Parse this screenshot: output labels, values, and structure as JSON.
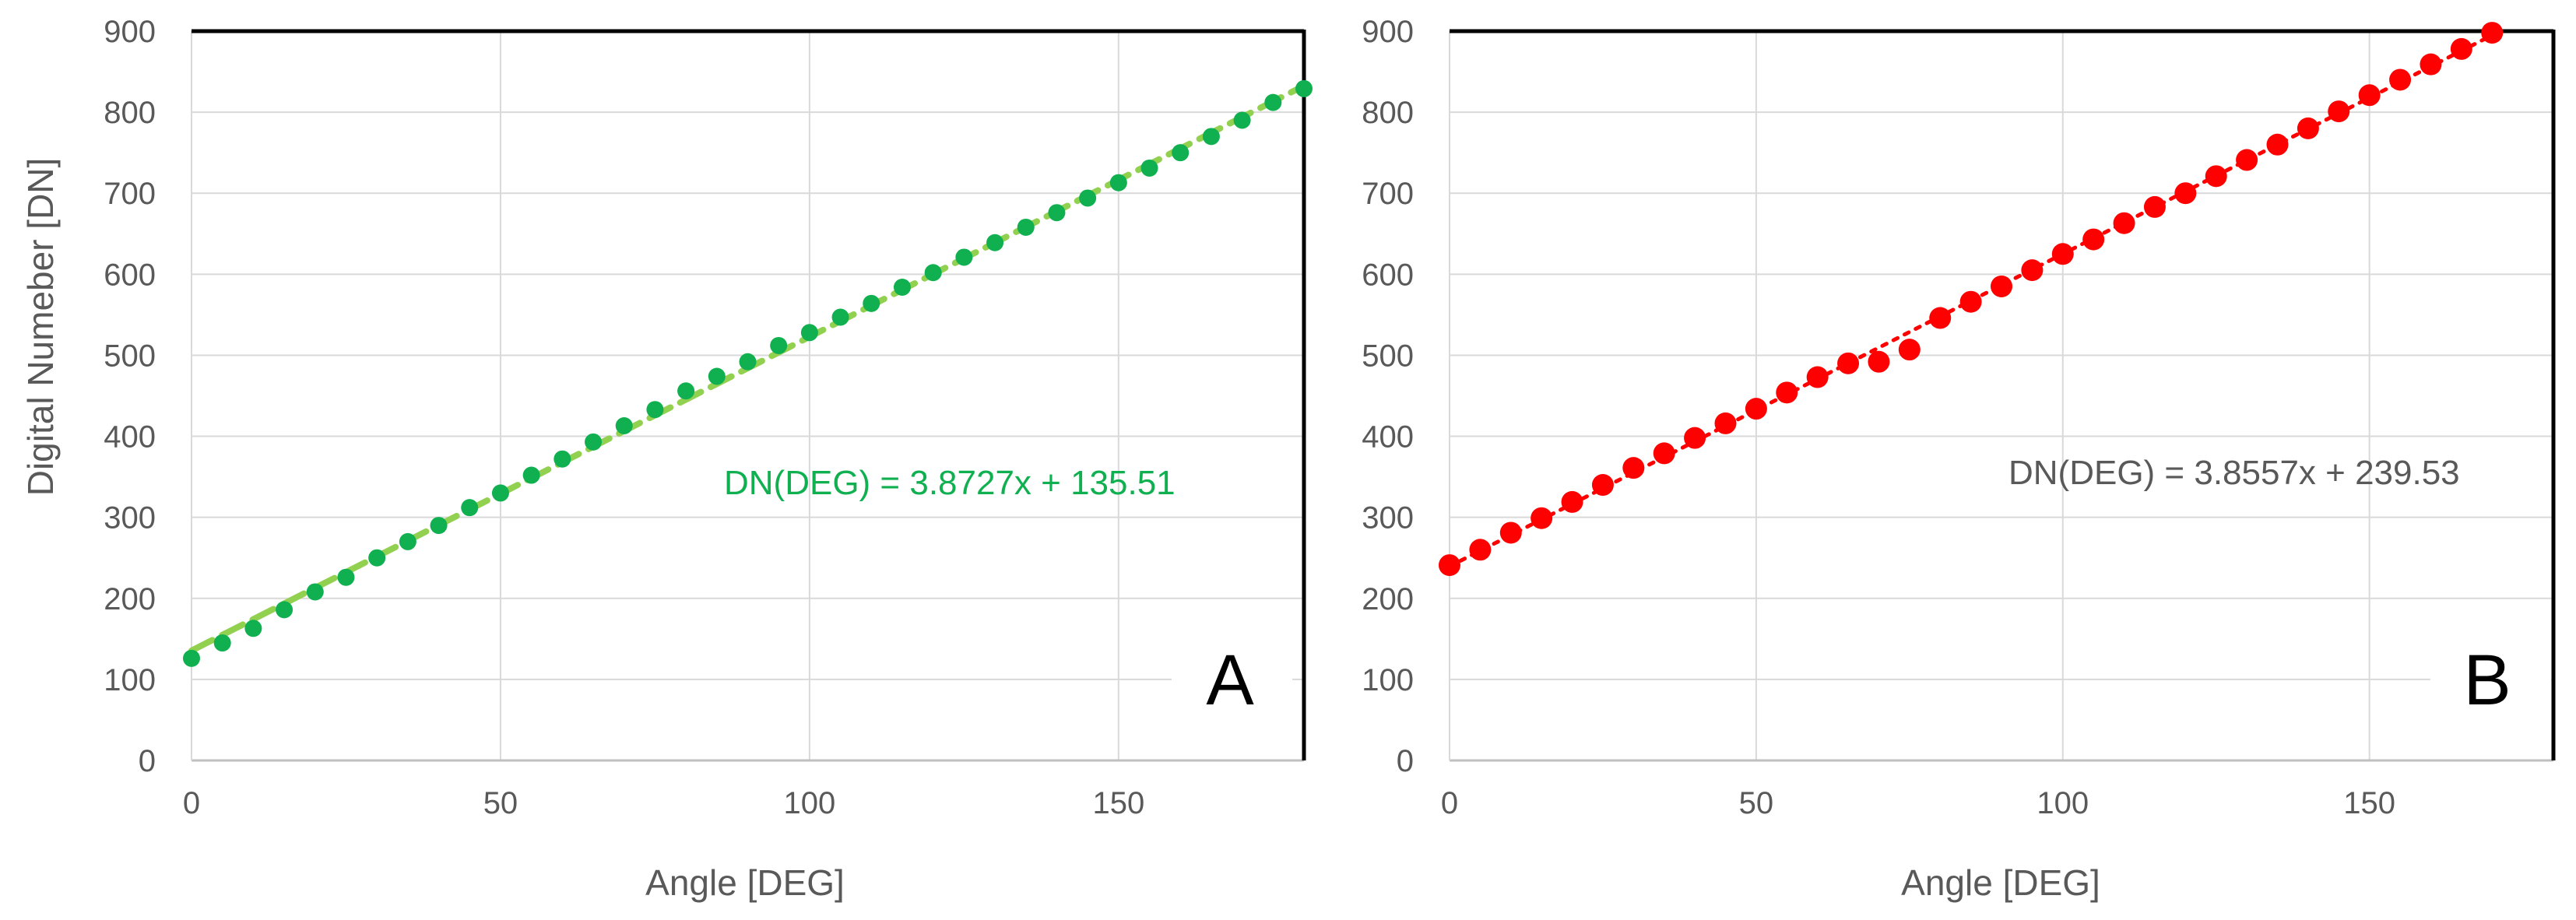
{
  "chart_data": [
    {
      "type": "scatter",
      "panel_label": "A",
      "xlabel": "Angle [DEG]",
      "ylabel": "Digital Numeber [DN]",
      "xlim": [
        0,
        180
      ],
      "ylim": [
        0,
        900
      ],
      "x_ticks": [
        0,
        50,
        100,
        150
      ],
      "y_ticks": [
        0,
        100,
        200,
        300,
        400,
        500,
        600,
        700,
        800,
        900
      ],
      "grid": true,
      "series": [
        {
          "color": "#10b050",
          "marker": "circle",
          "x": [
            0,
            5,
            10,
            15,
            20,
            25,
            30,
            35,
            40,
            45,
            50,
            55,
            60,
            65,
            70,
            75,
            80,
            85,
            90,
            95,
            100,
            105,
            110,
            115,
            120,
            125,
            130,
            135,
            140,
            145,
            150,
            155,
            160,
            165,
            170,
            175,
            180
          ],
          "y": [
            126,
            145,
            163,
            186,
            208,
            226,
            250,
            270,
            290,
            312,
            330,
            352,
            372,
            393,
            413,
            433,
            456,
            474,
            492,
            512,
            528,
            547,
            564,
            584,
            602,
            621,
            639,
            658,
            676,
            694,
            713,
            731,
            750,
            770,
            790,
            812,
            829
          ]
        }
      ],
      "trendline": {
        "slope": 3.8727,
        "intercept": 135.51,
        "color": "#92d050",
        "style": "dashed",
        "equation": "DN(DEG) = 3.8727x + 135.51",
        "equation_color": "#10b050"
      }
    },
    {
      "type": "scatter",
      "panel_label": "B",
      "xlabel": "Angle [DEG]",
      "ylabel": "",
      "xlim": [
        0,
        180
      ],
      "ylim": [
        0,
        900
      ],
      "x_ticks": [
        0,
        50,
        100,
        150
      ],
      "y_ticks": [
        0,
        100,
        200,
        300,
        400,
        500,
        600,
        700,
        800,
        900
      ],
      "grid": true,
      "series": [
        {
          "color": "#ff0000",
          "marker": "circle",
          "x": [
            0,
            5,
            10,
            15,
            20,
            25,
            30,
            35,
            40,
            45,
            50,
            55,
            60,
            65,
            70,
            75,
            80,
            85,
            90,
            95,
            100,
            105,
            110,
            115,
            120,
            125,
            130,
            135,
            140,
            145,
            150,
            155,
            160,
            165,
            170
          ],
          "y": [
            241,
            260,
            281,
            299,
            319,
            340,
            361,
            379,
            398,
            416,
            434,
            454,
            473,
            490,
            492,
            507,
            546,
            566,
            585,
            605,
            625,
            643,
            663,
            683,
            700,
            721,
            741,
            760,
            780,
            801,
            821,
            840,
            859,
            878,
            898
          ]
        }
      ],
      "trendline": {
        "slope": 3.8557,
        "intercept": 239.53,
        "color": "#ff0000",
        "style": "dotted",
        "equation": "DN(DEG) = 3.8557x + 239.53",
        "equation_color": "#595959"
      }
    }
  ]
}
